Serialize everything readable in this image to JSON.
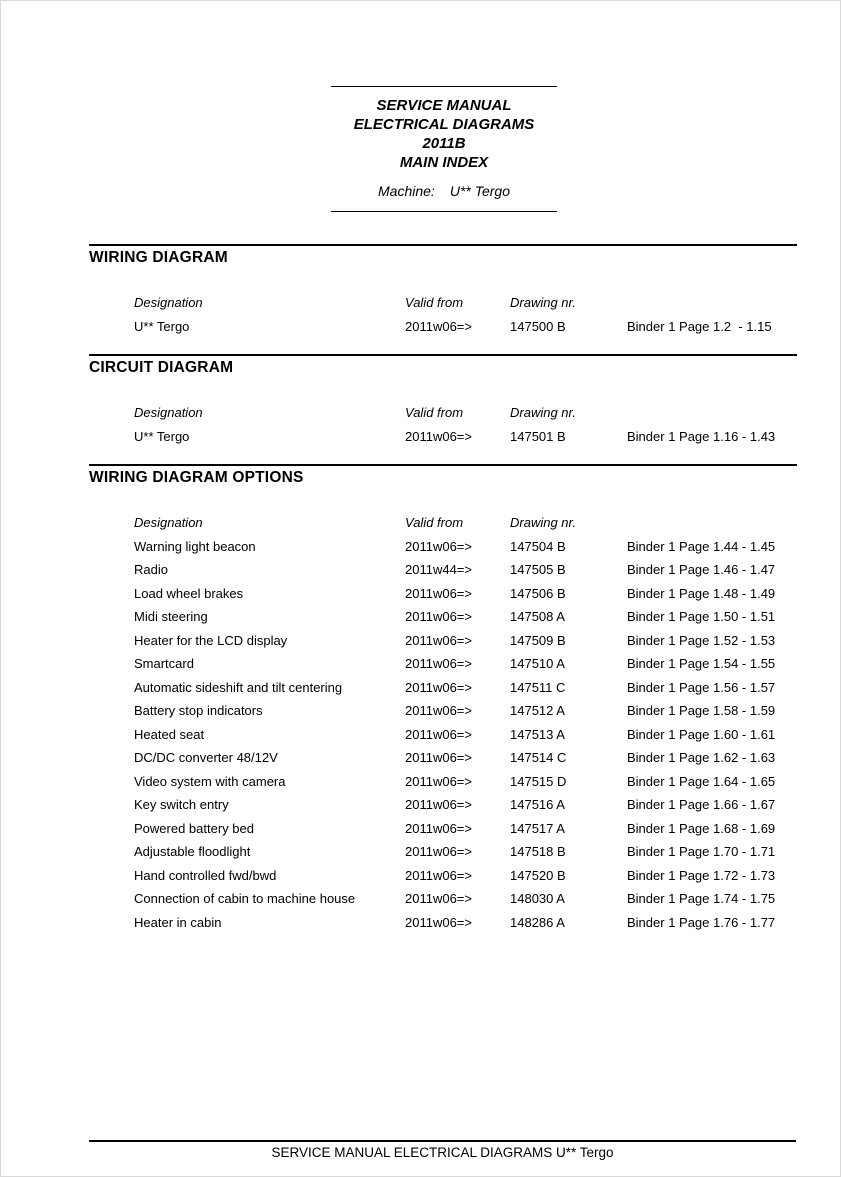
{
  "colors": {
    "text": "#000000",
    "background": "#ffffff",
    "rule": "#000000"
  },
  "header": {
    "title_lines": [
      "SERVICE MANUAL",
      "ELECTRICAL DIAGRAMS",
      "2011B",
      "MAIN INDEX"
    ],
    "machine_label": "Machine:",
    "machine_value": "U** Tergo"
  },
  "columns": {
    "designation": "Designation",
    "valid_from": "Valid from",
    "drawing_nr": "Drawing nr."
  },
  "sections": [
    {
      "title": "WIRING DIAGRAM",
      "rows": [
        {
          "designation": "U** Tergo",
          "valid_from": "2011w06=>",
          "drawing_nr": "147500 B",
          "binder": "Binder 1 Page 1.2  - 1.15"
        }
      ]
    },
    {
      "title": "CIRCUIT DIAGRAM",
      "rows": [
        {
          "designation": "U** Tergo",
          "valid_from": "2011w06=>",
          "drawing_nr": "147501 B",
          "binder": "Binder 1 Page 1.16 - 1.43"
        }
      ]
    },
    {
      "title": "WIRING DIAGRAM OPTIONS",
      "rows": [
        {
          "designation": "Warning light beacon",
          "valid_from": "2011w06=>",
          "drawing_nr": "147504 B",
          "binder": "Binder 1 Page 1.44 - 1.45"
        },
        {
          "designation": "Radio",
          "valid_from": "2011w44=>",
          "drawing_nr": "147505 B",
          "binder": "Binder 1 Page 1.46 - 1.47"
        },
        {
          "designation": "Load wheel brakes",
          "valid_from": "2011w06=>",
          "drawing_nr": "147506 B",
          "binder": "Binder 1 Page 1.48 - 1.49"
        },
        {
          "designation": "Midi steering",
          "valid_from": "2011w06=>",
          "drawing_nr": "147508 A",
          "binder": "Binder 1 Page 1.50 - 1.51"
        },
        {
          "designation": "Heater for the LCD display",
          "valid_from": "2011w06=>",
          "drawing_nr": "147509 B",
          "binder": "Binder 1 Page 1.52 - 1.53"
        },
        {
          "designation": "Smartcard",
          "valid_from": "2011w06=>",
          "drawing_nr": "147510 A",
          "binder": "Binder 1 Page 1.54 - 1.55"
        },
        {
          "designation": "Automatic sideshift and tilt centering",
          "valid_from": "2011w06=>",
          "drawing_nr": "147511 C",
          "binder": "Binder 1 Page 1.56 - 1.57"
        },
        {
          "designation": "Battery stop indicators",
          "valid_from": "2011w06=>",
          "drawing_nr": "147512 A",
          "binder": "Binder 1 Page 1.58 - 1.59"
        },
        {
          "designation": "Heated seat",
          "valid_from": "2011w06=>",
          "drawing_nr": "147513 A",
          "binder": "Binder 1 Page 1.60 - 1.61"
        },
        {
          "designation": "DC/DC converter 48/12V",
          "valid_from": "2011w06=>",
          "drawing_nr": "147514 C",
          "binder": "Binder 1 Page 1.62 - 1.63"
        },
        {
          "designation": "Video system with camera",
          "valid_from": "2011w06=>",
          "drawing_nr": "147515 D",
          "binder": "Binder 1 Page 1.64 - 1.65"
        },
        {
          "designation": "Key switch entry",
          "valid_from": "2011w06=>",
          "drawing_nr": "147516 A",
          "binder": "Binder 1 Page 1.66 - 1.67"
        },
        {
          "designation": "Powered battery bed",
          "valid_from": "2011w06=>",
          "drawing_nr": "147517 A",
          "binder": "Binder 1 Page 1.68 - 1.69"
        },
        {
          "designation": "Adjustable floodlight",
          "valid_from": "2011w06=>",
          "drawing_nr": "147518 B",
          "binder": "Binder 1 Page 1.70 - 1.71"
        },
        {
          "designation": "Hand controlled fwd/bwd",
          "valid_from": "2011w06=>",
          "drawing_nr": "147520 B",
          "binder": "Binder 1 Page 1.72 - 1.73"
        },
        {
          "designation": "Connection of cabin to machine house",
          "valid_from": "2011w06=>",
          "drawing_nr": "148030 A",
          "binder": "Binder 1 Page 1.74 - 1.75"
        },
        {
          "designation": "Heater in cabin",
          "valid_from": "2011w06=>",
          "drawing_nr": "148286 A",
          "binder": "Binder 1 Page 1.76 - 1.77"
        }
      ]
    }
  ],
  "footer": {
    "text": "SERVICE MANUAL ELECTRICAL DIAGRAMS U** Tergo"
  }
}
